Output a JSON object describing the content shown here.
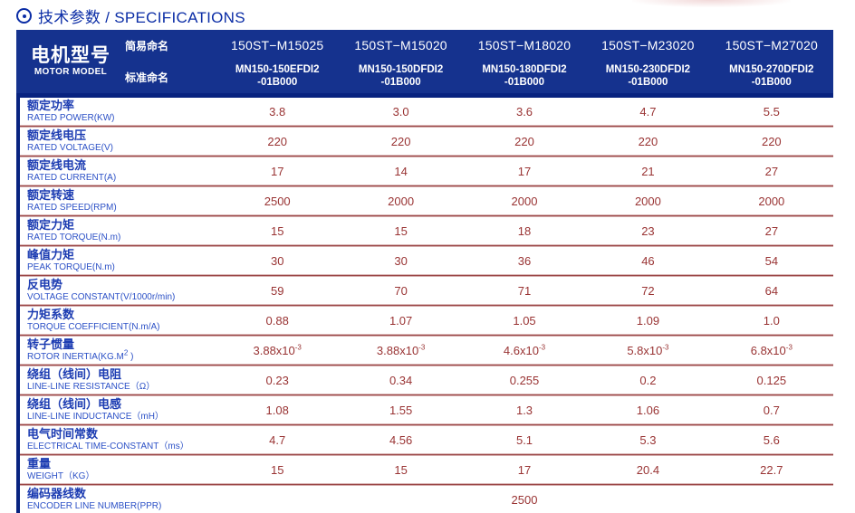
{
  "page": {
    "title": "技术参数 / SPECIFICATIONS"
  },
  "colors": {
    "header_bg": "#15328E",
    "accent_navy_border": "#082380",
    "title_blue": "#0B2DA6",
    "label_blue": "#1C3CB2",
    "value_red": "#993333",
    "divider_red": "#9B4747"
  },
  "header": {
    "motor_model_zh": "电机型号",
    "motor_model_en": "MOTOR MODEL",
    "simple_name_label": "简易命名",
    "standard_name_label": "标准命名",
    "columns": [
      {
        "simple": "150ST−M15025",
        "standard_line1": "MN150-150EFDI2",
        "standard_line2": "-01B000"
      },
      {
        "simple": "150ST−M15020",
        "standard_line1": "MN150-150DFDI2",
        "standard_line2": "-01B000"
      },
      {
        "simple": "150ST−M18020",
        "standard_line1": "MN150-180DFDI2",
        "standard_line2": "-01B000"
      },
      {
        "simple": "150ST−M23020",
        "standard_line1": "MN150-230DFDI2",
        "standard_line2": "-01B000"
      },
      {
        "simple": "150ST−M27020",
        "standard_line1": "MN150-270DFDI2",
        "standard_line2": "-01B000"
      }
    ]
  },
  "rows": [
    {
      "zh": "额定功率",
      "en": "RATED POWER(KW)",
      "values": [
        "3.8",
        "3.0",
        "3.6",
        "4.7",
        "5.5"
      ]
    },
    {
      "zh": "额定线电压",
      "en": "RATED VOLTAGE(V)",
      "values": [
        "220",
        "220",
        "220",
        "220",
        "220"
      ]
    },
    {
      "zh": "额定线电流",
      "en": "RATED CURRENT(A)",
      "values": [
        "17",
        "14",
        "17",
        "21",
        "27"
      ]
    },
    {
      "zh": "额定转速",
      "en": "RATED SPEED(RPM)",
      "values": [
        "2500",
        "2000",
        "2000",
        "2000",
        "2000"
      ]
    },
    {
      "zh": "额定力矩",
      "en": "RATED TORQUE(N.m)",
      "values": [
        "15",
        "15",
        "18",
        "23",
        "27"
      ]
    },
    {
      "zh": "峰值力矩",
      "en": "PEAK TORQUE(N.m)",
      "values": [
        "30",
        "30",
        "36",
        "46",
        "54"
      ]
    },
    {
      "zh": "反电势",
      "en": "VOLTAGE CONSTANT(V/1000r/min)",
      "values": [
        "59",
        "70",
        "71",
        "72",
        "64"
      ]
    },
    {
      "zh": "力矩系数",
      "en": "TORQUE COEFFICIENT(N.m/A)",
      "values": [
        "0.88",
        "1.07",
        "1.05",
        "1.09",
        "1.0"
      ]
    },
    {
      "zh": "转子惯量",
      "en_pre": "ROTOR INERTIA(KG.M",
      "en_sup": "2",
      "en_post": " )",
      "values": [
        "3.88x10",
        "3.88x10",
        "4.6x10",
        "5.8x10",
        "6.8x10"
      ],
      "sups": [
        "-3",
        "-3",
        "-3",
        "-3",
        "-3"
      ]
    },
    {
      "zh": "绕组（线间）电阻",
      "en": "LINE-LINE RESISTANCE（Ω）",
      "values": [
        "0.23",
        "0.34",
        "0.255",
        "0.2",
        "0.125"
      ]
    },
    {
      "zh": "绕组（线间）电感",
      "en": "LINE-LINE INDUCTANCE（mH）",
      "values": [
        "1.08",
        "1.55",
        "1.3",
        "1.06",
        "0.7"
      ]
    },
    {
      "zh": "电气时间常数",
      "en": "ELECTRICAL TIME-CONSTANT（ms）",
      "values": [
        "4.7",
        "4.56",
        "5.1",
        "5.3",
        "5.6"
      ]
    },
    {
      "zh": "重量",
      "en": "WEIGHT（KG）",
      "values": [
        "15",
        "15",
        "17",
        "20.4",
        "22.7"
      ]
    },
    {
      "zh": "编码器线数",
      "en": "ENCODER LINE NUMBER(PPR)",
      "merged_value": "2500"
    }
  ]
}
